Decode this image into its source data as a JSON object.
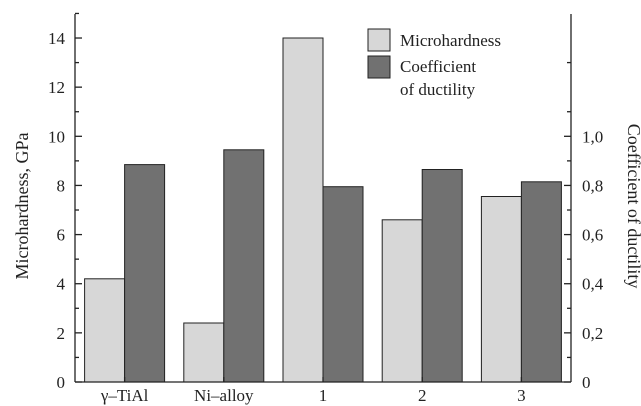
{
  "chart_data": {
    "type": "bar",
    "categories": [
      "γ–TiAl",
      "Ni–alloy",
      "1",
      "2",
      "3"
    ],
    "series": [
      {
        "name": "Microhardness",
        "axis": "left",
        "color": "#d7d7d7",
        "values": [
          4.2,
          2.4,
          14.0,
          6.6,
          7.55
        ]
      },
      {
        "name": "Coefficient of ductility",
        "legend_lines": [
          "Coefficient",
          "of ductility"
        ],
        "axis": "right",
        "color": "#717171",
        "values": [
          0.885,
          0.945,
          0.795,
          0.865,
          0.815
        ]
      }
    ],
    "ylabel": "Microhardness, GPa",
    "ylabel_right": "Coefficient of ductility",
    "ylim": [
      0,
      15
    ],
    "ylim_right": [
      0,
      1.5
    ],
    "yticks": [
      "0",
      "2",
      "4",
      "6",
      "8",
      "10",
      "12",
      "14"
    ],
    "yticks_right": [
      "0",
      "0,2",
      "0,4",
      "0,6",
      "0,8",
      "1,0"
    ],
    "grid": false,
    "legend_position": "top-right"
  }
}
